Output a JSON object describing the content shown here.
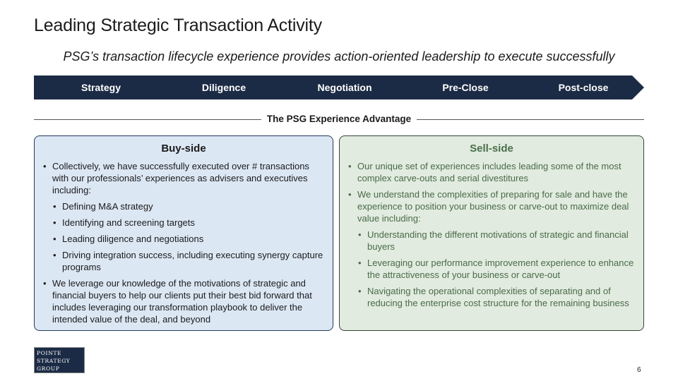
{
  "title": "Leading Strategic Transaction Activity",
  "subtitle": "PSG’s transaction lifecycle experience provides action-oriented leadership to execute successfully",
  "phases": [
    "Strategy",
    "Diligence",
    "Negotiation",
    "Pre-Close",
    "Post-close"
  ],
  "divider_label": "The PSG Experience Advantage",
  "buy_side": {
    "heading": "Buy-side",
    "bullets": [
      "Collectively, we have successfully executed over # transactions with our professionals’ experiences as advisers and executives including:",
      "Defining M&A strategy",
      "Identifying and screening targets",
      "Leading diligence and negotiations",
      "Driving integration success, including executing synergy capture programs",
      "We leverage our knowledge of the motivations of strategic and financial buyers to help our clients put their best bid forward that includes leveraging our transformation playbook to deliver the intended value of the deal, and beyond"
    ]
  },
  "sell_side": {
    "heading": "Sell-side",
    "bullets": [
      "Our unique set of experiences includes leading some of the most complex carve-outs and serial divestitures",
      "We understand the complexities of preparing for sale and have the experience to position your business or carve-out to maximize deal value including:",
      "Understanding the different motivations of strategic and financial buyers",
      "Leveraging our performance improvement experience to enhance the attractiveness of your business or carve-out",
      "Navigating the operational complexities of separating and of reducing the enterprise cost structure for the remaining business"
    ]
  },
  "logo": {
    "line1": "POINTE",
    "line2": "STRATEGY",
    "line3": "GROUP"
  },
  "page_number": "6",
  "colors": {
    "navy": "#1c2b45",
    "buy_bg": "#dce7f4",
    "sell_bg": "#e1ebdf",
    "sell_text": "#4a6b4a"
  }
}
